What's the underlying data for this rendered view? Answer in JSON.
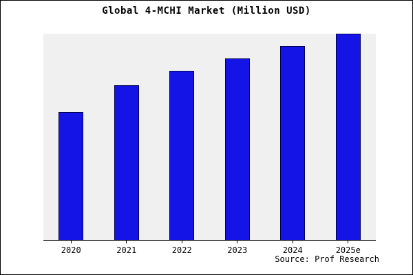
{
  "title": "Global 4-MCHI Market (Million USD)",
  "source": "Source: Prof Research",
  "chart_data": {
    "type": "bar",
    "title": "Global 4-MCHI Market (Million USD)",
    "categories": [
      "2020",
      "2021",
      "2022",
      "2023",
      "2024",
      "2025e"
    ],
    "values": [
      62,
      75,
      82,
      88,
      94,
      100
    ],
    "xlabel": "",
    "ylabel": "",
    "ylim": [
      0,
      100
    ],
    "grid": false,
    "legend": "none",
    "bar_color": "#1414e6",
    "bar_border_color": "#000050",
    "plot_background": "#f0f0f0",
    "page_background": "#ffffff",
    "annotations": [
      "Source: Prof Research"
    ]
  }
}
